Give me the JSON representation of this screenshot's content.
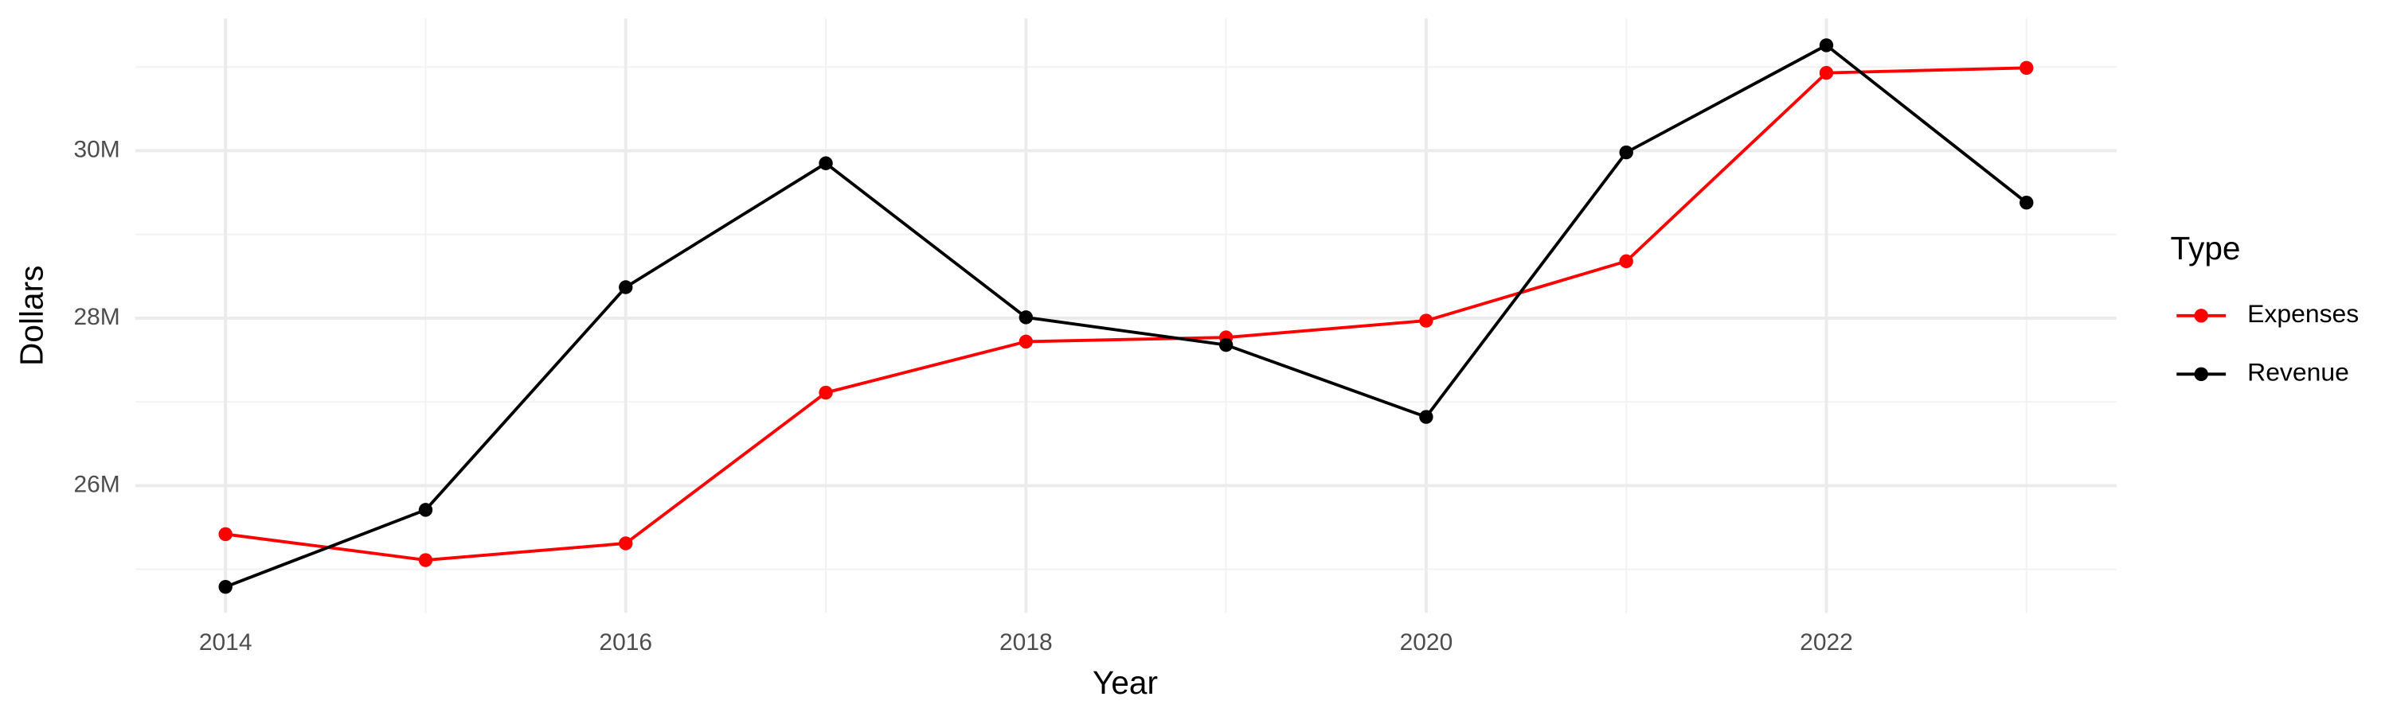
{
  "chart_data": {
    "type": "line",
    "x_label": "Year",
    "y_label": "Dollars",
    "legend_title": "Type",
    "x": [
      2014,
      2015,
      2016,
      2017,
      2018,
      2019,
      2020,
      2021,
      2022,
      2023
    ],
    "series": [
      {
        "name": "Expenses",
        "color": "#ff0000",
        "values": [
          25420000,
          25110000,
          25310000,
          27110000,
          27720000,
          27770000,
          27970000,
          28680000,
          30930000,
          30990000
        ]
      },
      {
        "name": "Revenue",
        "color": "#000000",
        "values": [
          24790000,
          25710000,
          28370000,
          29850000,
          28010000,
          27680000,
          26820000,
          29980000,
          31260000,
          29380000
        ]
      }
    ],
    "xlim": [
      2013.55,
      2023.45
    ],
    "xticks": [
      2014,
      2016,
      2018,
      2020,
      2022
    ],
    "ylim": [
      24480000,
      31580000
    ],
    "yticks": [
      {
        "value": 26000000,
        "label": "26M"
      },
      {
        "value": 28000000,
        "label": "28M"
      },
      {
        "value": 30000000,
        "label": "30M"
      }
    ],
    "grid": true,
    "legend_position": "right"
  }
}
